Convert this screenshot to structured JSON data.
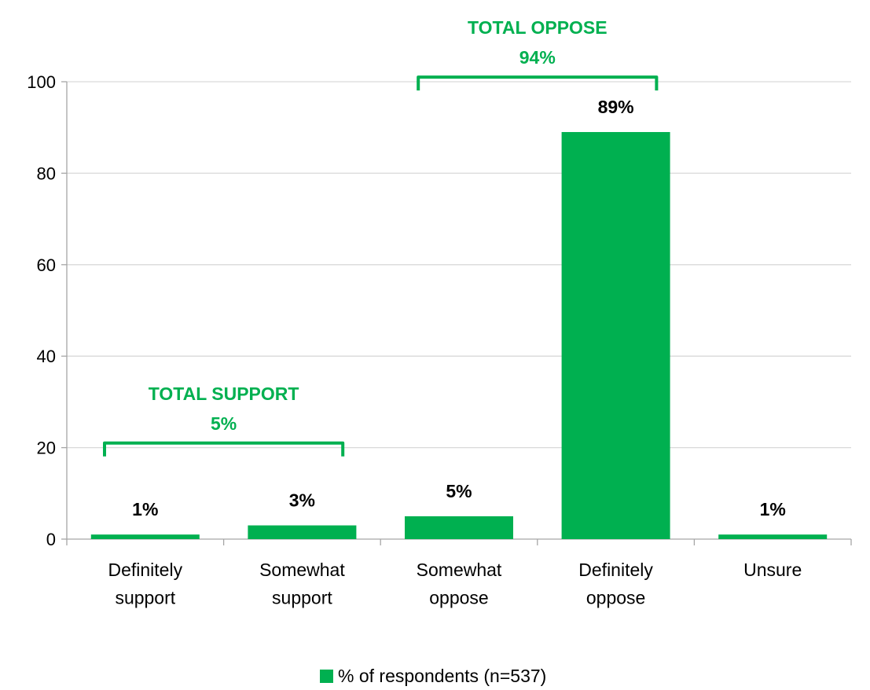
{
  "chart_data": {
    "type": "bar",
    "categories": [
      [
        "Definitely",
        "support"
      ],
      [
        "Somewhat",
        "support"
      ],
      [
        "Somewhat",
        "oppose"
      ],
      [
        "Definitely",
        "oppose"
      ],
      [
        "Unsure"
      ]
    ],
    "series": [
      {
        "name": "% of respondents (n=537)",
        "values": [
          1,
          3,
          5,
          89,
          1
        ],
        "labels": [
          "1%",
          "3%",
          "5%",
          "89%",
          "1%"
        ],
        "color": "#00B050"
      }
    ],
    "ylim": [
      0,
      100
    ],
    "yticks": [
      0,
      20,
      40,
      60,
      80,
      100
    ],
    "grid": true,
    "legend_position": "bottom",
    "groups": [
      {
        "title": "TOTAL SUPPORT",
        "value": "5%",
        "start_index": 0,
        "end_index": 1,
        "level": 21
      },
      {
        "title": "TOTAL OPPOSE",
        "value": "94%",
        "start_index": 2,
        "end_index": 3,
        "level": 101
      }
    ],
    "colors": {
      "bar": "#00B050",
      "group_text": "#00B050",
      "bracket": "#00B050",
      "grid": "#D9D9D9",
      "axis": "#A6A6A6"
    }
  }
}
